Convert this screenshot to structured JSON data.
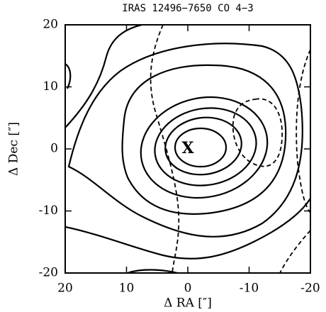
{
  "chart_data": {
    "type": "contour",
    "title": "IRAS 12496−7650 CO 4−3",
    "xlabel": "Δ RA [″]",
    "ylabel": "Δ Dec [″]",
    "xlim": [
      20,
      -20
    ],
    "ylim": [
      -20,
      20
    ],
    "xticks": [
      20,
      10,
      0,
      -10,
      -20
    ],
    "yticks": [
      -20,
      -10,
      0,
      10,
      20
    ],
    "annotation": "X"
  }
}
